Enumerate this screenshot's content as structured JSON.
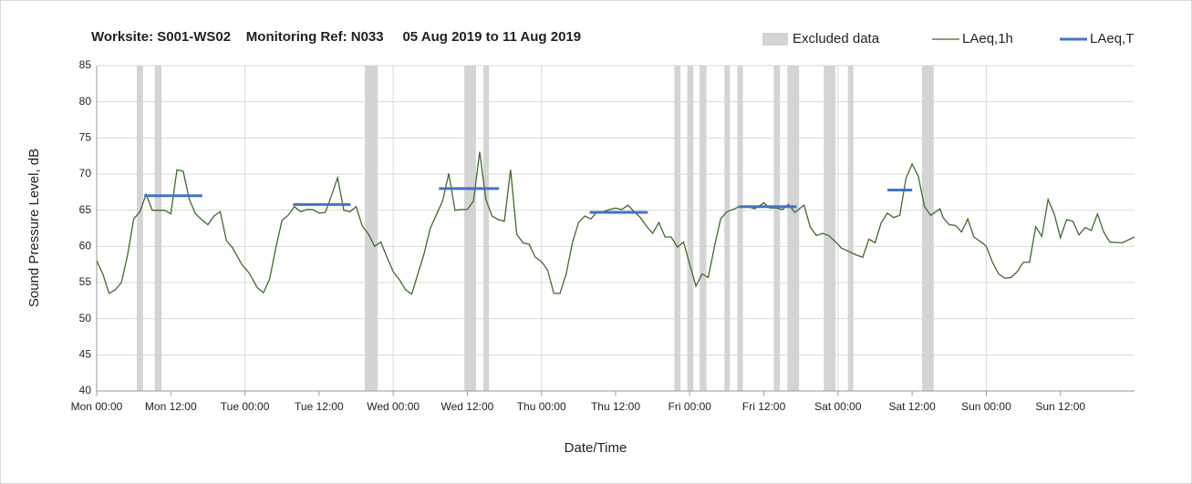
{
  "chart_data": {
    "type": "line",
    "title": "Worksite: S001-WS02    Monitoring Ref: N033     05 Aug 2019 to 11 Aug 2019",
    "xlabel": "Date/Time",
    "ylabel": "Sound Pressure Level, dB",
    "xlim": [
      0,
      168
    ],
    "ylim": [
      40,
      85
    ],
    "xticks": [
      {
        "value": 0,
        "label": "Mon 00:00"
      },
      {
        "value": 12,
        "label": "Mon 12:00"
      },
      {
        "value": 24,
        "label": "Tue 00:00"
      },
      {
        "value": 36,
        "label": "Tue 12:00"
      },
      {
        "value": 48,
        "label": "Wed 00:00"
      },
      {
        "value": 60,
        "label": "Wed 12:00"
      },
      {
        "value": 72,
        "label": "Thu 00:00"
      },
      {
        "value": 84,
        "label": "Thu 12:00"
      },
      {
        "value": 96,
        "label": "Fri 00:00"
      },
      {
        "value": 108,
        "label": "Fri 12:00"
      },
      {
        "value": 120,
        "label": "Sat 00:00"
      },
      {
        "value": 132,
        "label": "Sat 12:00"
      },
      {
        "value": 144,
        "label": "Sun 00:00"
      },
      {
        "value": 156,
        "label": "Sun 12:00"
      }
    ],
    "yticks": [
      40,
      45,
      50,
      55,
      60,
      65,
      70,
      75,
      80,
      85
    ],
    "x_gridlines": [
      24,
      48,
      72,
      96,
      120,
      144
    ],
    "grid": true,
    "legend": "top-right",
    "excluded": {
      "name": "Excluded data",
      "color": "#d4d4d4",
      "ranges": [
        [
          6.5,
          7.5
        ],
        [
          9.4,
          10.5
        ],
        [
          43.4,
          45.5
        ],
        [
          59.5,
          61.4
        ],
        [
          62.6,
          63.5
        ],
        [
          93.5,
          94.5
        ],
        [
          95.6,
          96.6
        ],
        [
          97.6,
          98.7
        ],
        [
          101.6,
          102.5
        ],
        [
          103.7,
          104.6
        ],
        [
          109.6,
          110.6
        ],
        [
          111.8,
          113.7
        ],
        [
          117.7,
          119.6
        ],
        [
          121.6,
          122.5
        ],
        [
          133.6,
          135.5
        ]
      ]
    },
    "x": [
      0,
      1,
      2,
      3,
      4,
      5,
      6,
      7,
      8,
      9,
      11,
      12,
      13,
      14,
      15,
      16,
      17,
      18,
      19,
      20,
      21,
      22,
      23.5,
      24.7,
      26,
      27,
      28,
      29,
      30,
      31,
      32,
      33,
      34,
      35,
      36,
      37,
      38,
      39,
      40,
      41,
      42,
      43,
      44,
      45,
      46,
      47,
      48,
      49,
      50,
      51,
      52,
      53,
      54,
      55,
      56,
      57,
      58,
      59,
      60,
      61,
      62,
      63,
      64,
      65,
      66,
      67,
      68,
      69,
      70,
      71,
      72,
      73,
      74,
      75,
      76,
      77,
      78,
      79,
      80,
      81,
      82,
      83,
      84,
      85,
      86,
      87,
      88,
      89,
      90,
      91,
      92,
      93,
      94,
      95,
      96,
      97,
      98,
      99,
      100,
      101,
      102,
      103,
      104,
      105.5,
      106.5,
      108,
      109,
      110,
      111,
      112,
      113,
      114.5,
      115.5,
      116.5,
      117.5,
      118.5,
      120,
      120.5,
      122,
      123,
      124,
      125,
      126,
      127,
      128,
      129,
      130,
      131,
      132,
      133,
      134,
      135,
      136.5,
      137,
      138,
      139,
      140,
      141,
      142,
      143.5,
      144,
      145,
      146,
      147,
      148,
      149,
      150,
      151,
      152,
      153,
      154,
      155,
      156,
      157,
      158,
      159,
      160,
      161,
      162,
      163,
      164,
      166,
      168
    ],
    "series": [
      {
        "name": "LAeq,1h",
        "color": "#3d6b2a",
        "values": [
          58.0,
          56.2,
          53.5,
          54,
          55,
          58.8,
          63.8,
          64.8,
          67.2,
          65,
          65,
          64.5,
          70.6,
          70.4,
          66.5,
          64.5,
          63.7,
          63,
          64.2,
          64.8,
          60.8,
          59.8,
          57.5,
          56.3,
          54.3,
          53.6,
          55.5,
          59.8,
          63.6,
          64.3,
          65.5,
          64.8,
          65.1,
          65.1,
          64.6,
          64.7,
          67,
          69.5,
          65,
          64.8,
          65.5,
          62.8,
          61.7,
          60,
          60.6,
          58.5,
          56.5,
          55.4,
          54,
          53.4,
          56.2,
          59,
          62.5,
          64.4,
          66.3,
          70.1,
          65,
          65.1,
          65.1,
          66.3,
          73.1,
          66.5,
          64.2,
          63.7,
          63.5,
          70.6,
          61.7,
          60.5,
          60.3,
          58.5,
          57.9,
          56.7,
          53.5,
          53.5,
          56.2,
          60.5,
          63.3,
          64.2,
          63.8,
          64.8,
          64.8,
          65.1,
          65.3,
          65.1,
          65.7,
          64.8,
          64,
          62.8,
          61.8,
          63.3,
          61.3,
          61.3,
          59.9,
          60.6,
          57.5,
          54.5,
          56.2,
          55.7,
          60,
          63.8,
          64.8,
          65.1,
          65.5,
          65.5,
          65.2,
          66,
          65.3,
          65.3,
          65.1,
          65.8,
          64.7,
          65.7,
          62.7,
          61.5,
          61.8,
          61.5,
          60.3,
          59.8,
          59.2,
          58.8,
          58.5,
          61,
          60.5,
          63.3,
          64.6,
          64,
          64.3,
          69.4,
          71.4,
          69.7,
          65.5,
          64.3,
          65.2,
          64,
          63,
          62.9,
          62,
          63.8,
          61.3,
          60.4,
          60,
          57.8,
          56.2,
          55.6,
          55.7,
          56.5,
          57.8,
          57.8,
          62.7,
          61.4,
          66.5,
          64.5,
          61.2,
          63.7,
          63.5,
          61.6,
          62.6,
          62.2,
          64.5,
          62,
          60.6,
          60.5,
          61.3
        ]
      }
    ],
    "periods": {
      "name": "LAeq,T",
      "color": "#4472c4",
      "segments": [
        {
          "start": 7.7,
          "end": 17.1,
          "value": 67.0
        },
        {
          "start": 31.8,
          "end": 41.1,
          "value": 65.8
        },
        {
          "start": 55.4,
          "end": 65.1,
          "value": 68.0
        },
        {
          "start": 79.8,
          "end": 89.2,
          "value": 64.7
        },
        {
          "start": 104,
          "end": 113.3,
          "value": 65.5
        },
        {
          "start": 128,
          "end": 132,
          "value": 67.8
        }
      ]
    }
  }
}
